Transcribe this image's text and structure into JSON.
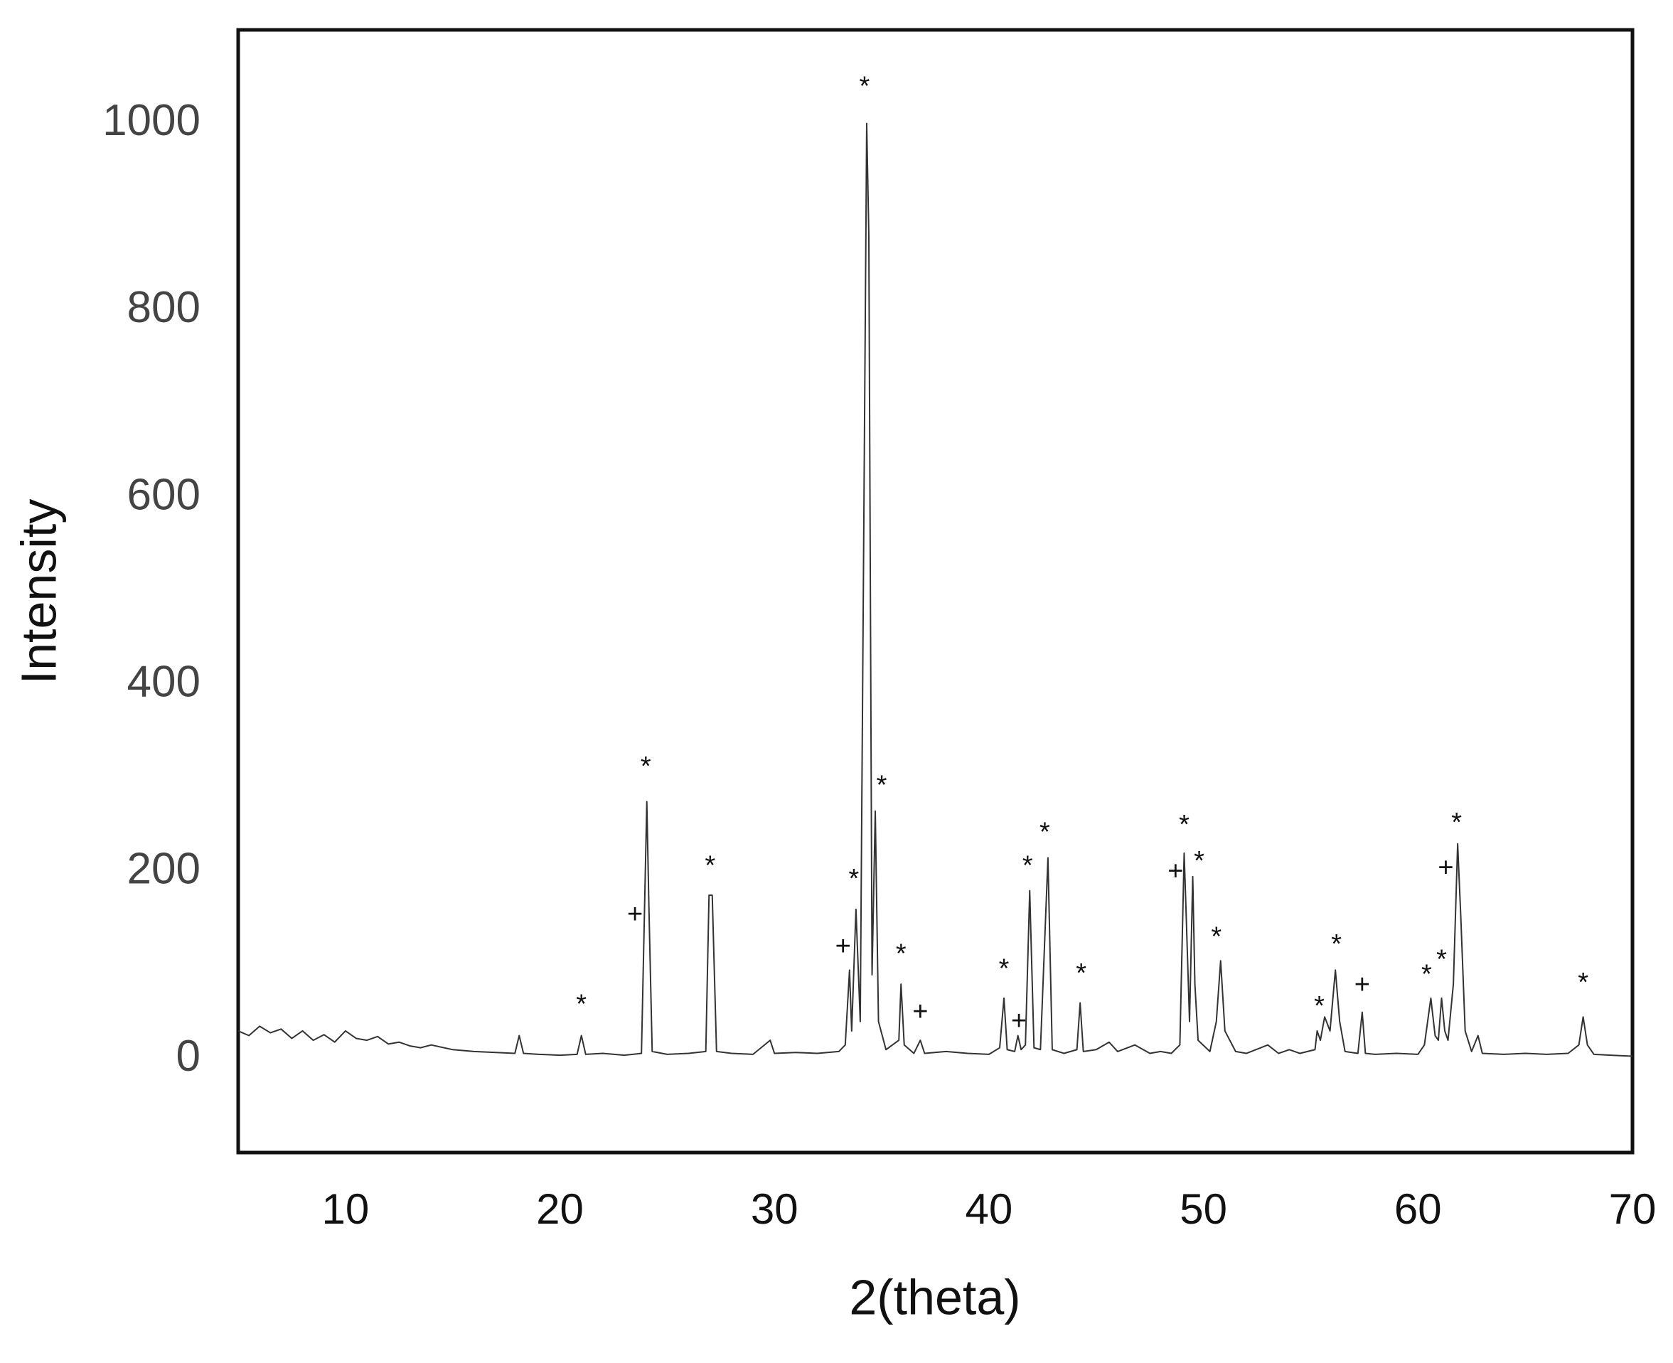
{
  "chart_data": {
    "type": "line",
    "x_label": "2(theta)",
    "y_label": "Intensity",
    "xlim": [
      5,
      70
    ],
    "ylim": [
      -100,
      1100
    ],
    "xticks": [
      10,
      20,
      30,
      40,
      50,
      60,
      70
    ],
    "yticks": [
      0,
      200,
      400,
      600,
      800,
      1000
    ],
    "grid": false,
    "color": "#333333",
    "x": [
      5,
      5.5,
      6,
      6.5,
      7,
      7.5,
      8,
      8.5,
      9,
      9.5,
      10,
      10.5,
      11,
      11.5,
      12,
      12.5,
      13,
      13.5,
      14,
      15,
      16,
      17,
      17.9,
      18.1,
      18.3,
      19,
      20,
      20.8,
      21,
      21.2,
      22,
      23,
      23.8,
      24.05,
      24.15,
      24.3,
      25,
      26,
      26.8,
      26.95,
      27.1,
      27.3,
      28,
      29,
      29.8,
      30,
      31,
      32,
      33,
      33.3,
      33.5,
      33.6,
      33.8,
      34.0,
      34.3,
      34.4,
      34.55,
      34.7,
      34.85,
      35.2,
      35.8,
      35.9,
      36.05,
      36.5,
      36.8,
      37,
      38,
      39,
      40,
      40.5,
      40.7,
      40.85,
      41.2,
      41.35,
      41.5,
      41.7,
      41.9,
      42.1,
      42.4,
      42.75,
      42.95,
      43.5,
      44.1,
      44.25,
      44.4,
      45,
      45.6,
      46,
      46.8,
      47.5,
      48,
      48.5,
      48.9,
      49.1,
      49.2,
      49.35,
      49.5,
      49.6,
      49.75,
      50.3,
      50.6,
      50.8,
      51.0,
      51.5,
      52,
      53,
      53.5,
      54,
      54.5,
      55.2,
      55.3,
      55.45,
      55.65,
      55.9,
      56.15,
      56.35,
      56.6,
      57.2,
      57.4,
      57.55,
      58,
      59,
      60,
      60.3,
      60.6,
      60.8,
      60.95,
      61.1,
      61.25,
      61.4,
      61.65,
      61.85,
      62,
      62.2,
      62.5,
      62.8,
      63,
      64,
      65,
      66,
      67,
      67.5,
      67.7,
      67.9,
      68.2,
      69,
      70
    ],
    "values": [
      30,
      25,
      35,
      28,
      32,
      22,
      30,
      20,
      26,
      18,
      30,
      22,
      20,
      24,
      16,
      18,
      14,
      12,
      15,
      10,
      8,
      7,
      6,
      25,
      6,
      5,
      4,
      5,
      25,
      5,
      6,
      4,
      6,
      275,
      160,
      8,
      5,
      6,
      8,
      175,
      175,
      8,
      6,
      5,
      20,
      6,
      7,
      6,
      8,
      15,
      95,
      30,
      160,
      40,
      1000,
      880,
      90,
      265,
      40,
      10,
      20,
      80,
      15,
      6,
      20,
      6,
      8,
      6,
      5,
      12,
      65,
      10,
      8,
      25,
      10,
      15,
      180,
      12,
      10,
      215,
      10,
      6,
      10,
      60,
      8,
      10,
      18,
      8,
      15,
      6,
      8,
      6,
      15,
      220,
      150,
      40,
      195,
      80,
      20,
      8,
      40,
      105,
      30,
      8,
      6,
      15,
      6,
      10,
      6,
      10,
      30,
      20,
      45,
      30,
      95,
      40,
      8,
      6,
      50,
      6,
      5,
      6,
      5,
      15,
      65,
      25,
      20,
      65,
      30,
      20,
      80,
      230,
      150,
      30,
      8,
      25,
      6,
      5,
      6,
      5,
      6,
      15,
      45,
      15,
      5,
      4,
      3
    ],
    "annotations": [
      {
        "text": "*",
        "x": 21.0,
        "y": 57
      },
      {
        "text": "+",
        "x": 23.5,
        "y": 153
      },
      {
        "text": "*",
        "x": 24.0,
        "y": 311
      },
      {
        "text": "*",
        "x": 27.0,
        "y": 205
      },
      {
        "text": "+",
        "x": 33.2,
        "y": 119
      },
      {
        "text": "*",
        "x": 33.7,
        "y": 191
      },
      {
        "text": "*",
        "x": 34.2,
        "y": 1038
      },
      {
        "text": "*",
        "x": 35.0,
        "y": 291
      },
      {
        "text": "*",
        "x": 35.9,
        "y": 111
      },
      {
        "text": "+",
        "x": 36.8,
        "y": 49
      },
      {
        "text": "*",
        "x": 40.7,
        "y": 95
      },
      {
        "text": "+",
        "x": 41.4,
        "y": 39
      },
      {
        "text": "*",
        "x": 41.8,
        "y": 205
      },
      {
        "text": "*",
        "x": 42.6,
        "y": 241
      },
      {
        "text": "*",
        "x": 44.3,
        "y": 90
      },
      {
        "text": "+",
        "x": 48.7,
        "y": 199
      },
      {
        "text": "*",
        "x": 49.1,
        "y": 249
      },
      {
        "text": "*",
        "x": 49.8,
        "y": 210
      },
      {
        "text": "*",
        "x": 50.6,
        "y": 129
      },
      {
        "text": "*",
        "x": 55.4,
        "y": 55
      },
      {
        "text": "*",
        "x": 56.2,
        "y": 121
      },
      {
        "text": "+",
        "x": 57.4,
        "y": 78
      },
      {
        "text": "*",
        "x": 60.4,
        "y": 89
      },
      {
        "text": "*",
        "x": 61.1,
        "y": 105
      },
      {
        "text": "+",
        "x": 61.3,
        "y": 203
      },
      {
        "text": "*",
        "x": 61.8,
        "y": 251
      },
      {
        "text": "*",
        "x": 67.7,
        "y": 80
      }
    ]
  }
}
